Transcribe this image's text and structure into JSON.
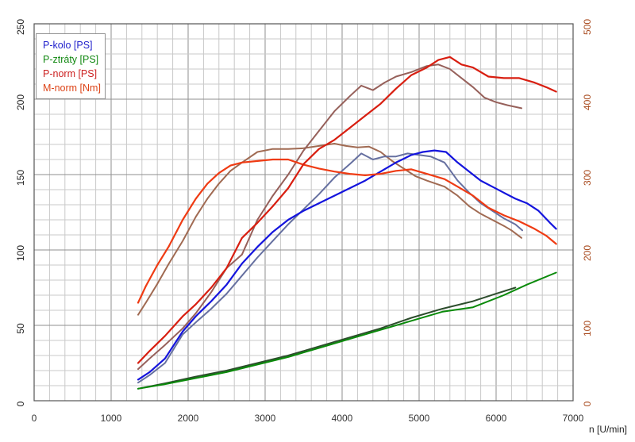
{
  "legend": {
    "items": [
      {
        "label": "P-kolo [PS]",
        "color": "#2222cc"
      },
      {
        "label": "P-ztráty [PS]",
        "color": "#118811"
      },
      {
        "label": "P-norm [PS]",
        "color": "#cc2020"
      },
      {
        "label": "M-norm [Nm]",
        "color": "#dd4418"
      }
    ]
  },
  "chart_data": {
    "type": "line",
    "title": "",
    "xlabel": "n [U/min]",
    "x_axis": {
      "min": 0,
      "max": 7000,
      "major_step": 1000,
      "minor_step": 200,
      "tick_labels": [
        "0",
        "1000",
        "2000",
        "3000",
        "4000",
        "5000",
        "6000",
        "7000"
      ],
      "tick_color": "#333333"
    },
    "y_axis_left": {
      "min": 0,
      "max": 250,
      "major_step": 50,
      "minor_step": 10,
      "tick_labels": [
        "0",
        "50",
        "100",
        "150",
        "200",
        "250"
      ],
      "unit": "PS",
      "tick_color": "#222222"
    },
    "y_axis_right": {
      "min": 0,
      "max": 500,
      "major_step": 100,
      "minor_step": 20,
      "tick_labels": [
        "0",
        "100",
        "200",
        "300",
        "400",
        "500"
      ],
      "unit": "Nm",
      "tick_color": "#a84a1e"
    },
    "grid": {
      "minor_color": "#c9c9c9",
      "major_color": "#8f8f8f",
      "border_color": "#555555"
    },
    "legend_position": "top-left",
    "series": [
      {
        "name": "P-ztraty-run2",
        "axis": "left",
        "color": "#2d4d2d",
        "width": 2,
        "points": [
          [
            1350,
            8
          ],
          [
            1700,
            11.5
          ],
          [
            2100,
            16
          ],
          [
            2500,
            20
          ],
          [
            2900,
            25
          ],
          [
            3300,
            30
          ],
          [
            3700,
            36
          ],
          [
            4100,
            42
          ],
          [
            4500,
            48
          ],
          [
            4900,
            55
          ],
          [
            5300,
            61
          ],
          [
            5700,
            66
          ],
          [
            6000,
            71
          ],
          [
            6250,
            75
          ]
        ]
      },
      {
        "name": "P-ztraty-run1",
        "axis": "left",
        "color": "#0a8a0a",
        "width": 2,
        "points": [
          [
            1350,
            8
          ],
          [
            1700,
            11
          ],
          [
            2100,
            15
          ],
          [
            2500,
            19
          ],
          [
            2900,
            24
          ],
          [
            3300,
            29
          ],
          [
            3700,
            35
          ],
          [
            4100,
            41
          ],
          [
            4500,
            47
          ],
          [
            4900,
            53
          ],
          [
            5300,
            59
          ],
          [
            5700,
            62
          ],
          [
            6100,
            70
          ],
          [
            6400,
            77
          ],
          [
            6780,
            85
          ]
        ]
      },
      {
        "name": "M-norm-run2",
        "axis": "right",
        "color": "#a06a52",
        "width": 2,
        "points": [
          [
            1350,
            114
          ],
          [
            1450,
            130
          ],
          [
            1600,
            155
          ],
          [
            1750,
            182
          ],
          [
            1930,
            212
          ],
          [
            2100,
            244
          ],
          [
            2250,
            268
          ],
          [
            2400,
            288
          ],
          [
            2550,
            305
          ],
          [
            2700,
            316
          ],
          [
            2900,
            330
          ],
          [
            3100,
            334
          ],
          [
            3300,
            334
          ],
          [
            3500,
            335
          ],
          [
            3700,
            338
          ],
          [
            3900,
            341
          ],
          [
            4050,
            338
          ],
          [
            4200,
            336
          ],
          [
            4350,
            337
          ],
          [
            4500,
            330
          ],
          [
            4650,
            318
          ],
          [
            4800,
            308
          ],
          [
            4950,
            298
          ],
          [
            5100,
            292
          ],
          [
            5330,
            284
          ],
          [
            5500,
            272
          ],
          [
            5650,
            258
          ],
          [
            5800,
            248
          ],
          [
            5950,
            240
          ],
          [
            6100,
            232
          ],
          [
            6200,
            226
          ],
          [
            6330,
            216
          ]
        ]
      },
      {
        "name": "P-kolo-run2",
        "axis": "left",
        "color": "#6670a0",
        "width": 2,
        "points": [
          [
            1350,
            12
          ],
          [
            1500,
            17
          ],
          [
            1700,
            25
          ],
          [
            1930,
            44
          ],
          [
            2100,
            52
          ],
          [
            2300,
            61
          ],
          [
            2500,
            71
          ],
          [
            2700,
            83
          ],
          [
            2900,
            95
          ],
          [
            3100,
            106
          ],
          [
            3300,
            117
          ],
          [
            3500,
            127
          ],
          [
            3700,
            137
          ],
          [
            3900,
            148
          ],
          [
            4100,
            157
          ],
          [
            4250,
            164
          ],
          [
            4400,
            160
          ],
          [
            4550,
            162
          ],
          [
            4700,
            162
          ],
          [
            4850,
            164
          ],
          [
            5000,
            163
          ],
          [
            5150,
            162
          ],
          [
            5330,
            158
          ],
          [
            5500,
            146
          ],
          [
            5650,
            138
          ],
          [
            5800,
            131
          ],
          [
            5950,
            126
          ],
          [
            6100,
            121
          ],
          [
            6250,
            117
          ],
          [
            6340,
            113
          ]
        ]
      },
      {
        "name": "P-kolo-run1",
        "axis": "left",
        "color": "#1414dd",
        "width": 2.2,
        "points": [
          [
            1350,
            14
          ],
          [
            1500,
            19
          ],
          [
            1700,
            28
          ],
          [
            1930,
            46
          ],
          [
            2100,
            56
          ],
          [
            2300,
            66
          ],
          [
            2500,
            77
          ],
          [
            2700,
            91
          ],
          [
            2900,
            102
          ],
          [
            3100,
            112
          ],
          [
            3300,
            120
          ],
          [
            3500,
            126
          ],
          [
            3700,
            131
          ],
          [
            3900,
            136
          ],
          [
            4100,
            141
          ],
          [
            4300,
            146
          ],
          [
            4500,
            152
          ],
          [
            4700,
            158
          ],
          [
            4900,
            163
          ],
          [
            5050,
            165
          ],
          [
            5200,
            166
          ],
          [
            5350,
            165
          ],
          [
            5500,
            158
          ],
          [
            5650,
            152
          ],
          [
            5800,
            146
          ],
          [
            5950,
            142
          ],
          [
            6100,
            138
          ],
          [
            6250,
            134
          ],
          [
            6400,
            131
          ],
          [
            6550,
            126
          ],
          [
            6700,
            118
          ],
          [
            6780,
            114
          ]
        ]
      },
      {
        "name": "P-norm-run2",
        "axis": "left",
        "color": "#96605a",
        "width": 2,
        "points": [
          [
            1350,
            21
          ],
          [
            1500,
            28
          ],
          [
            1700,
            37
          ],
          [
            1930,
            48
          ],
          [
            2100,
            58
          ],
          [
            2300,
            72
          ],
          [
            2500,
            88
          ],
          [
            2700,
            97
          ],
          [
            2900,
            120
          ],
          [
            3100,
            136
          ],
          [
            3300,
            150
          ],
          [
            3500,
            166
          ],
          [
            3700,
            179
          ],
          [
            3900,
            192
          ],
          [
            4100,
            202
          ],
          [
            4250,
            209
          ],
          [
            4400,
            206
          ],
          [
            4550,
            211
          ],
          [
            4700,
            215
          ],
          [
            4900,
            218
          ],
          [
            5100,
            222
          ],
          [
            5250,
            223
          ],
          [
            5400,
            220
          ],
          [
            5550,
            214
          ],
          [
            5700,
            208
          ],
          [
            5850,
            201
          ],
          [
            6000,
            198
          ],
          [
            6150,
            196
          ],
          [
            6330,
            194
          ]
        ]
      },
      {
        "name": "M-norm-run1",
        "axis": "right",
        "color": "#ef3b13",
        "width": 2.2,
        "points": [
          [
            1350,
            130
          ],
          [
            1450,
            152
          ],
          [
            1600,
            180
          ],
          [
            1750,
            205
          ],
          [
            1930,
            240
          ],
          [
            2100,
            268
          ],
          [
            2250,
            288
          ],
          [
            2400,
            302
          ],
          [
            2550,
            312
          ],
          [
            2700,
            316
          ],
          [
            2900,
            318
          ],
          [
            3100,
            320
          ],
          [
            3300,
            320
          ],
          [
            3500,
            313
          ],
          [
            3700,
            308
          ],
          [
            3900,
            304
          ],
          [
            4100,
            301
          ],
          [
            4300,
            299
          ],
          [
            4500,
            301
          ],
          [
            4700,
            305
          ],
          [
            4900,
            307
          ],
          [
            5100,
            301
          ],
          [
            5330,
            294
          ],
          [
            5500,
            284
          ],
          [
            5700,
            272
          ],
          [
            5900,
            256
          ],
          [
            6100,
            246
          ],
          [
            6300,
            238
          ],
          [
            6500,
            228
          ],
          [
            6650,
            219
          ],
          [
            6780,
            208
          ]
        ]
      },
      {
        "name": "P-norm-run1",
        "axis": "left",
        "color": "#d81e10",
        "width": 2.2,
        "points": [
          [
            1350,
            25
          ],
          [
            1500,
            33
          ],
          [
            1700,
            43
          ],
          [
            1930,
            56
          ],
          [
            2100,
            64
          ],
          [
            2300,
            75
          ],
          [
            2500,
            88
          ],
          [
            2700,
            108
          ],
          [
            2900,
            118
          ],
          [
            3100,
            129
          ],
          [
            3300,
            141
          ],
          [
            3500,
            157
          ],
          [
            3700,
            167
          ],
          [
            3900,
            173
          ],
          [
            4100,
            181
          ],
          [
            4300,
            189
          ],
          [
            4500,
            197
          ],
          [
            4700,
            207
          ],
          [
            4900,
            216
          ],
          [
            5100,
            221
          ],
          [
            5250,
            226
          ],
          [
            5400,
            228
          ],
          [
            5550,
            223
          ],
          [
            5700,
            221
          ],
          [
            5900,
            215
          ],
          [
            6100,
            214
          ],
          [
            6300,
            214
          ],
          [
            6500,
            211
          ],
          [
            6650,
            208
          ],
          [
            6780,
            205
          ]
        ]
      }
    ]
  },
  "x_axis_label": "n [U/min]"
}
